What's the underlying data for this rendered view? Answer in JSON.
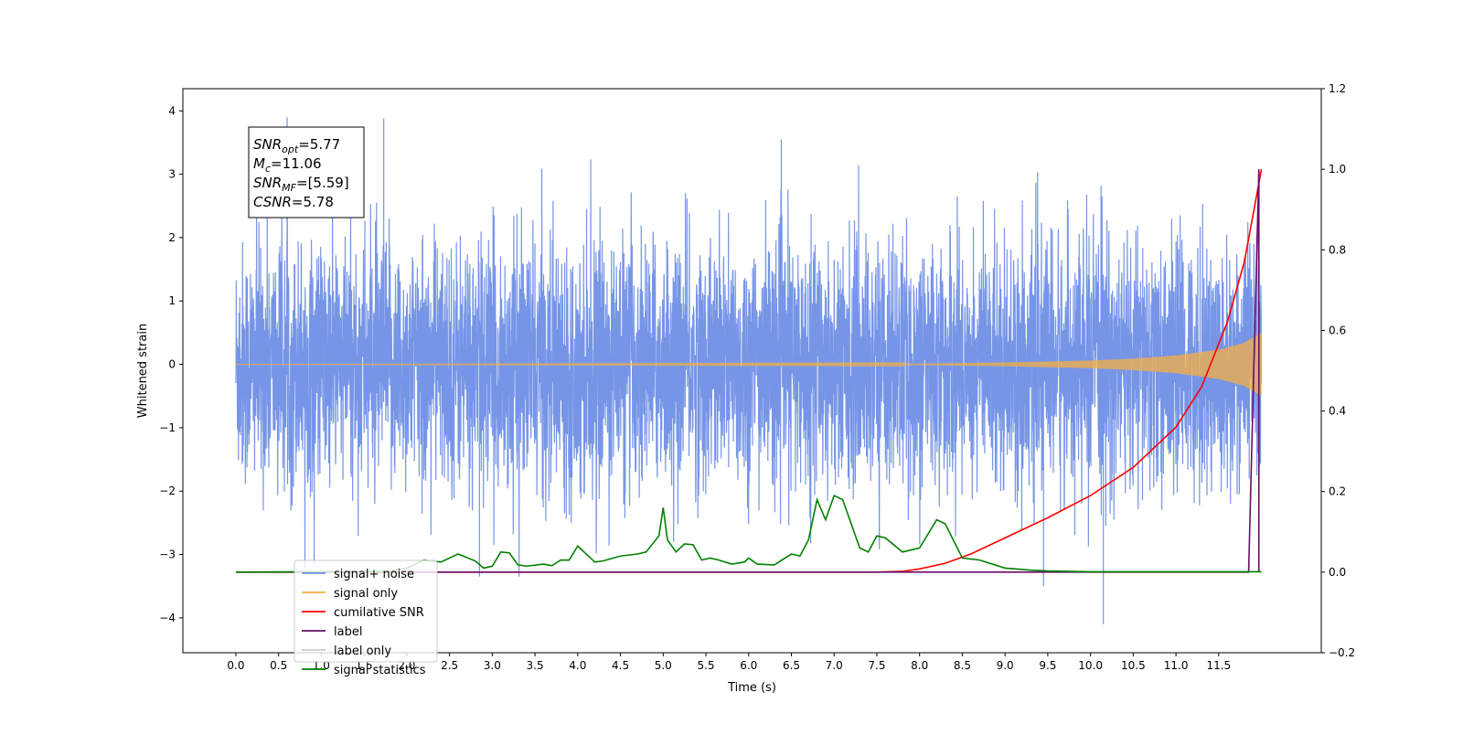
{
  "chart_data": {
    "type": "line",
    "xlabel": "Time (s)",
    "ylabel_left": "Whitened strain",
    "ylabel_right": "",
    "xlim": [
      -0.62,
      12.7
    ],
    "ylim_left": [
      -4.55,
      4.35
    ],
    "ylim_right": [
      -0.2,
      1.2
    ],
    "x_ticks": [
      "0.0",
      "0.5",
      "1.0",
      "1.5",
      "2.0",
      "2.5",
      "3.0",
      "3.5",
      "4.0",
      "4.5",
      "5.0",
      "5.5",
      "6.0",
      "6.5",
      "7.0",
      "7.5",
      "8.0",
      "8.5",
      "9.0",
      "9.5",
      "10.0",
      "10.5",
      "11.0",
      "11.5"
    ],
    "y_ticks_left": [
      "4",
      "3",
      "2",
      "1",
      "0",
      "−1",
      "−2",
      "−3",
      "−4"
    ],
    "y_ticks_right": [
      "1.2",
      "1.0",
      "0.8",
      "0.6",
      "0.4",
      "0.2",
      "0.0",
      "−0.2"
    ],
    "grid": false,
    "legend_position": "lower-left",
    "annotation": {
      "lines": [
        {
          "var": "SNR",
          "sub": "opt",
          "value": "=5.77"
        },
        {
          "var": "M",
          "sub": "c",
          "value": "=11.06"
        },
        {
          "var": "SNR",
          "sub": "MF",
          "value": "=[5.59]"
        },
        {
          "var": "CSNR",
          "sub": "",
          "value": "=5.78"
        }
      ]
    },
    "series": [
      {
        "name": "signal+ noise",
        "axis": "left",
        "color": "#6f8fe6",
        "description_values": {
          "x_range": [
            0.0,
            12.0
          ],
          "typical_range": [
            -2.3,
            2.3
          ],
          "peaks": [
            [
              0.6,
              3.9
            ],
            [
              1.73,
              3.88
            ],
            [
              10.15,
              -4.1
            ],
            [
              9.45,
              -3.5
            ],
            [
              2.85,
              -3.35
            ]
          ]
        }
      },
      {
        "name": "signal only",
        "axis": "left",
        "color": "#f5b041",
        "envelope": {
          "x": [
            0.0,
            8.0,
            9.0,
            10.0,
            10.5,
            11.0,
            11.5,
            11.8,
            12.0
          ],
          "amp": [
            0.0,
            0.01,
            0.03,
            0.06,
            0.09,
            0.14,
            0.23,
            0.34,
            0.5
          ]
        }
      },
      {
        "name": "cumilative SNR",
        "axis": "right",
        "color": "#ff0000",
        "x": [
          0.0,
          7.5,
          7.8,
          8.0,
          8.3,
          8.6,
          9.0,
          9.5,
          10.0,
          10.5,
          11.0,
          11.3,
          11.6,
          11.8,
          12.0
        ],
        "y": [
          0.0,
          0.0,
          0.002,
          0.008,
          0.022,
          0.045,
          0.085,
          0.135,
          0.19,
          0.26,
          0.36,
          0.46,
          0.62,
          0.77,
          1.0
        ]
      },
      {
        "name": "label",
        "axis": "right",
        "color": "#6a0c6a",
        "x": [
          0.0,
          11.85,
          11.97,
          11.97
        ],
        "y": [
          0.0,
          0.0,
          1.0,
          0.0
        ]
      },
      {
        "name": "label only",
        "axis": "right",
        "color": "#cccccc",
        "x": [],
        "y": []
      },
      {
        "name": "signal statistics",
        "axis": "right",
        "color": "#008000",
        "x": [
          0.0,
          1.8,
          2.0,
          2.2,
          2.4,
          2.6,
          2.8,
          2.9,
          3.0,
          3.1,
          3.2,
          3.3,
          3.4,
          3.6,
          3.7,
          3.8,
          3.9,
          4.0,
          4.05,
          4.1,
          4.2,
          4.3,
          4.5,
          4.7,
          4.8,
          4.95,
          5.0,
          5.05,
          5.15,
          5.25,
          5.35,
          5.45,
          5.55,
          5.65,
          5.8,
          5.95,
          6.0,
          6.1,
          6.3,
          6.5,
          6.6,
          6.7,
          6.8,
          6.9,
          7.0,
          7.1,
          7.2,
          7.3,
          7.4,
          7.5,
          7.6,
          7.8,
          8.0,
          8.2,
          8.3,
          8.5,
          8.7,
          9.0,
          9.3,
          9.5,
          10.0,
          11.8,
          12.0
        ],
        "y": [
          0.0,
          0.002,
          0.01,
          0.03,
          0.025,
          0.045,
          0.028,
          0.01,
          0.015,
          0.05,
          0.048,
          0.018,
          0.015,
          0.02,
          0.016,
          0.03,
          0.03,
          0.065,
          0.055,
          0.045,
          0.025,
          0.028,
          0.04,
          0.045,
          0.05,
          0.09,
          0.16,
          0.08,
          0.05,
          0.07,
          0.068,
          0.03,
          0.035,
          0.03,
          0.02,
          0.025,
          0.035,
          0.02,
          0.018,
          0.045,
          0.04,
          0.08,
          0.18,
          0.13,
          0.19,
          0.18,
          0.12,
          0.06,
          0.05,
          0.09,
          0.085,
          0.05,
          0.06,
          0.13,
          0.12,
          0.035,
          0.03,
          0.01,
          0.005,
          0.003,
          0.001,
          0.001,
          0.001
        ]
      }
    ]
  }
}
